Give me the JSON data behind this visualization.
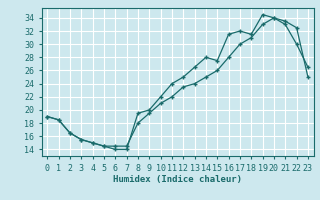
{
  "xlabel": "Humidex (Indice chaleur)",
  "xlim": [
    -0.5,
    23.5
  ],
  "ylim": [
    13,
    35.5
  ],
  "yticks": [
    14,
    16,
    18,
    20,
    22,
    24,
    26,
    28,
    30,
    32,
    34
  ],
  "xticks": [
    0,
    1,
    2,
    3,
    4,
    5,
    6,
    7,
    8,
    9,
    10,
    11,
    12,
    13,
    14,
    15,
    16,
    17,
    18,
    19,
    20,
    21,
    22,
    23
  ],
  "xtick_labels": [
    "0",
    "1",
    "2",
    "3",
    "4",
    "5",
    "6",
    "7",
    "8",
    "9",
    "10",
    "11",
    "12",
    "13",
    "14",
    "15",
    "16",
    "17",
    "18",
    "19",
    "20",
    "21",
    "22",
    "23"
  ],
  "bg_color": "#cde8ee",
  "grid_color": "#ffffff",
  "line_color": "#1a6b6b",
  "line1_x": [
    0,
    1,
    2,
    3,
    4,
    5,
    6,
    7,
    8,
    9,
    10,
    11,
    12,
    13,
    14,
    15,
    16,
    17,
    18,
    19,
    20,
    21,
    22,
    23
  ],
  "line1_y": [
    19,
    18.5,
    16.5,
    15.5,
    15,
    14.5,
    14,
    14,
    19.5,
    20,
    22,
    24,
    25,
    26.5,
    28,
    27.5,
    31.5,
    32,
    31.5,
    34.5,
    34,
    33,
    30,
    26.5
  ],
  "line2_x": [
    0,
    1,
    2,
    3,
    4,
    5,
    6,
    7,
    8,
    9,
    10,
    11,
    12,
    13,
    14,
    15,
    16,
    17,
    18,
    19,
    20,
    21,
    22,
    23
  ],
  "line2_y": [
    19,
    18.5,
    16.5,
    15.5,
    15,
    14.5,
    14.5,
    14.5,
    18,
    19.5,
    21,
    22,
    23.5,
    24,
    25,
    26,
    28,
    30,
    31,
    33,
    34,
    33.5,
    32.5,
    25
  ]
}
